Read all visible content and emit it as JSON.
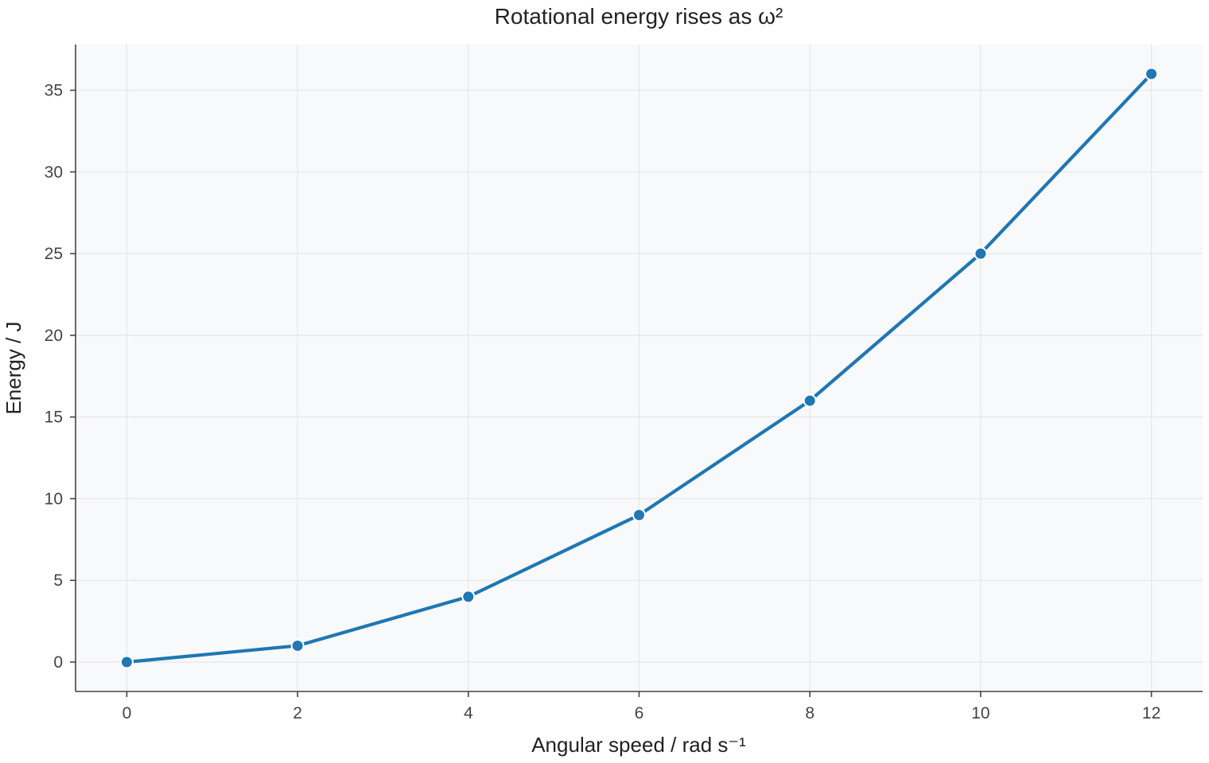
{
  "chart_data": {
    "type": "line",
    "title": "Rotational energy rises as ω²",
    "xlabel": "Angular speed / rad s⁻¹",
    "ylabel": "Energy / J",
    "x": [
      0,
      2,
      4,
      6,
      8,
      10,
      12
    ],
    "series": [
      {
        "values": [
          0,
          1,
          4,
          9,
          16,
          25,
          36
        ]
      }
    ],
    "xlim": [
      -0.6,
      12.6
    ],
    "ylim": [
      -1.8,
      37.8
    ],
    "xticks": [
      0,
      2,
      4,
      6,
      8,
      10,
      12
    ],
    "yticks": [
      0,
      5,
      10,
      15,
      20,
      25,
      30,
      35
    ],
    "grid": true,
    "legend": "none",
    "colors": {
      "line": "#1f77b4",
      "marker_edge": "#ffffff",
      "plot_background": "#f8f9fa",
      "grid": "#e6e6e6",
      "axis": "#444444"
    }
  }
}
